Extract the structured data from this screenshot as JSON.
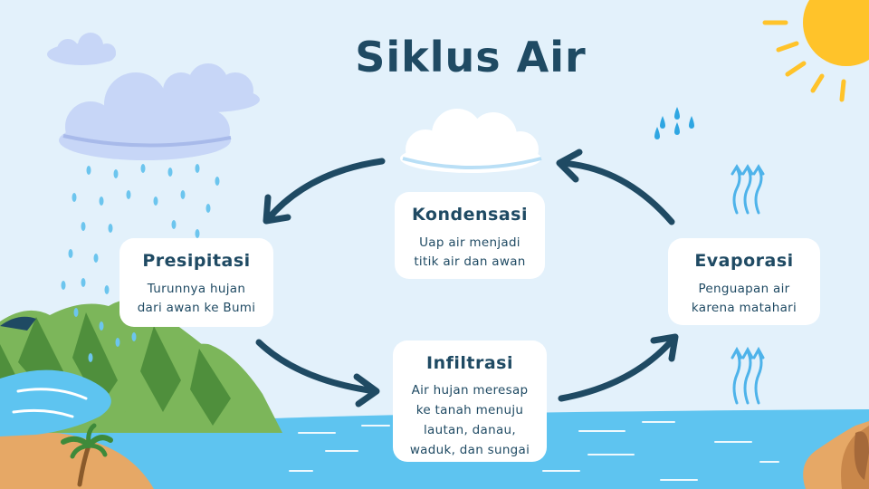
{
  "title": "Siklus Air",
  "stages": {
    "presipitasi": {
      "label": "Presipitasi",
      "desc_lines": [
        "Turunnya hujan",
        "dari awan ke Bumi"
      ]
    },
    "kondensasi": {
      "label": "Kondensasi",
      "desc_lines": [
        "Uap air menjadi",
        "titik air dan awan"
      ]
    },
    "evaporasi": {
      "label": "Evaporasi",
      "desc_lines": [
        "Penguapan air",
        "karena matahari"
      ]
    },
    "infiltrasi": {
      "label": "Infiltrasi",
      "desc_lines": [
        "Air hujan meresap",
        "ke tanah menuju",
        "lautan, danau,",
        "waduk, dan sungai"
      ]
    }
  },
  "colors": {
    "background": "#e3f1fb",
    "title": "#1f4a63",
    "arrow": "#1f4a63",
    "sea": "#5ec4f0",
    "hill": "#7cb65a",
    "sun": "#ffc32a",
    "rain": "#6cc5ee",
    "cloud": "#c7d6f7"
  },
  "icons": [
    "sun-icon",
    "cloud-icon",
    "rain-icon",
    "steam-icon",
    "palm-tree-icon",
    "water-drops-icon"
  ]
}
